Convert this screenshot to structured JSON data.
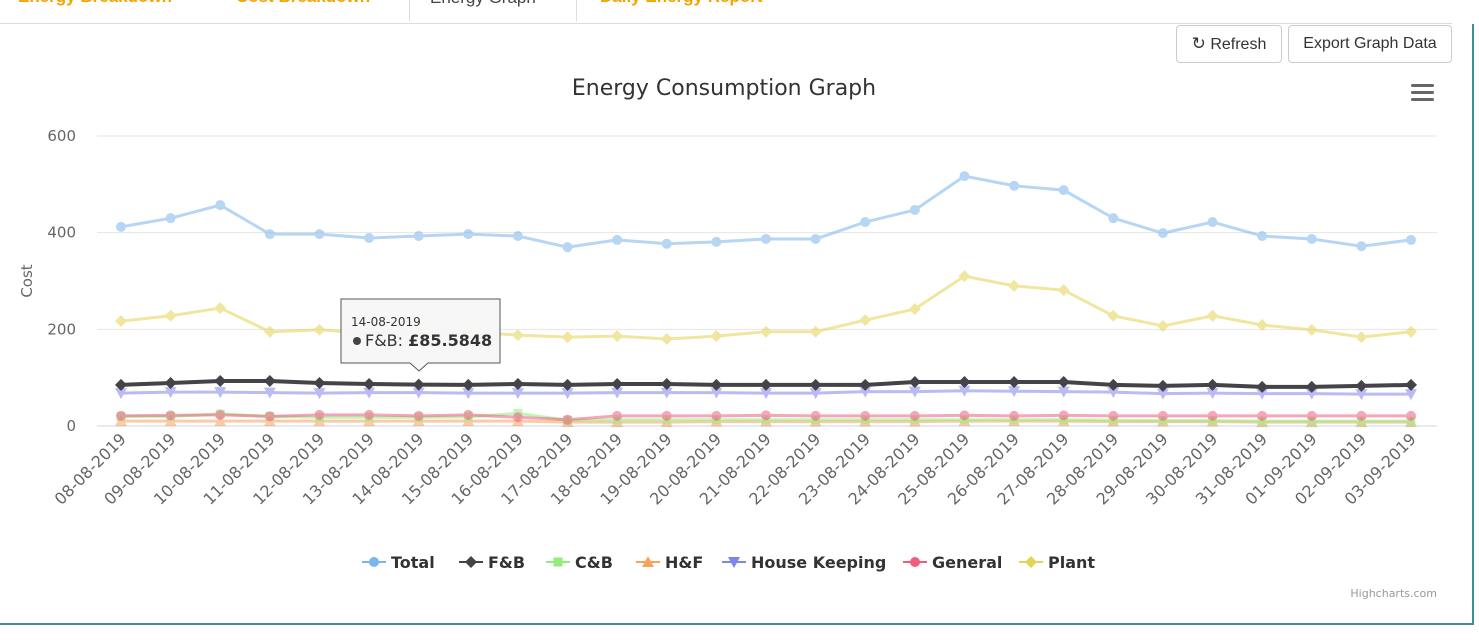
{
  "tabs": [
    {
      "label": "Energy Breakdown"
    },
    {
      "label": "Cost Breakdown"
    },
    {
      "label": "Energy Graph",
      "active": true
    },
    {
      "label": "Daily Energy Report"
    }
  ],
  "toolbar": {
    "refresh_label": "Refresh",
    "refresh_icon": "refresh-icon",
    "export_label": "Export Graph Data"
  },
  "menu_icon": "hamburger-menu-icon",
  "credits": "Highcharts.com",
  "tooltip": {
    "date": "14-08-2019",
    "series": "F&B",
    "value": "£85.5848"
  },
  "chart_data": {
    "type": "line",
    "title": "Energy Consumption Graph",
    "ylabel": "Cost",
    "ylim": [
      0,
      600
    ],
    "yticks": [
      0,
      200,
      400,
      600
    ],
    "grid": true,
    "legend": "bottom",
    "categories": [
      "08-08-2019",
      "09-08-2019",
      "10-08-2019",
      "11-08-2019",
      "12-08-2019",
      "13-08-2019",
      "14-08-2019",
      "15-08-2019",
      "16-08-2019",
      "17-08-2019",
      "18-08-2019",
      "19-08-2019",
      "20-08-2019",
      "21-08-2019",
      "22-08-2019",
      "23-08-2019",
      "24-08-2019",
      "25-08-2019",
      "26-08-2019",
      "27-08-2019",
      "28-08-2019",
      "29-08-2019",
      "30-08-2019",
      "31-08-2019",
      "01-09-2019",
      "02-09-2019",
      "03-09-2019"
    ],
    "series": [
      {
        "name": "Total",
        "color": "#7cb5ec",
        "marker": "circle",
        "values": [
          412,
          430,
          457,
          397,
          397,
          389,
          393,
          397,
          393,
          370,
          385,
          377,
          381,
          387,
          387,
          422,
          447,
          517,
          497,
          488,
          430,
          399,
          422,
          393,
          387,
          372,
          385
        ]
      },
      {
        "name": "F&B",
        "color": "#434348",
        "marker": "diamond",
        "values": [
          85,
          89,
          93,
          93,
          89,
          87,
          85.5848,
          85,
          87,
          85,
          87,
          87,
          85,
          85,
          85,
          85,
          91,
          91,
          91,
          91,
          85,
          83,
          85,
          81,
          81,
          83,
          85
        ]
      },
      {
        "name": "C&B",
        "color": "#90ed7d",
        "marker": "square",
        "values": [
          20,
          20,
          25,
          20,
          18,
          18,
          18,
          19,
          26,
          12,
          13,
          13,
          13,
          13,
          13,
          13,
          13,
          13,
          13,
          13,
          12,
          11,
          11,
          10,
          10,
          10,
          10
        ]
      },
      {
        "name": "H&F",
        "color": "#f7a35c",
        "marker": "triangle",
        "values": [
          10,
          10,
          10,
          10,
          10,
          10,
          10,
          10,
          10,
          8,
          8,
          8,
          9,
          9,
          9,
          9,
          9,
          10,
          10,
          10,
          9,
          9,
          9,
          8,
          8,
          8,
          8
        ]
      },
      {
        "name": "House Keeping",
        "color": "#8085e9",
        "marker": "triangle-down",
        "values": [
          68,
          70,
          70,
          69,
          68,
          69,
          69,
          68,
          68,
          68,
          69,
          69,
          69,
          68,
          68,
          71,
          71,
          73,
          72,
          71,
          70,
          67,
          68,
          67,
          67,
          66,
          66
        ]
      },
      {
        "name": "General",
        "color": "#f15c80",
        "marker": "circle",
        "values": [
          21,
          22,
          23,
          20,
          23,
          23,
          21,
          23,
          18,
          13,
          21,
          21,
          21,
          22,
          21,
          21,
          21,
          22,
          21,
          22,
          21,
          21,
          21,
          21,
          21,
          21,
          21
        ]
      },
      {
        "name": "Plant",
        "color": "#e4d354",
        "marker": "diamond",
        "values": [
          217,
          228,
          244,
          195,
          199,
          192,
          194,
          195,
          188,
          184,
          186,
          180,
          186,
          195,
          195,
          219,
          242,
          310,
          290,
          281,
          228,
          207,
          228,
          209,
          199,
          184,
          195
        ]
      }
    ]
  }
}
